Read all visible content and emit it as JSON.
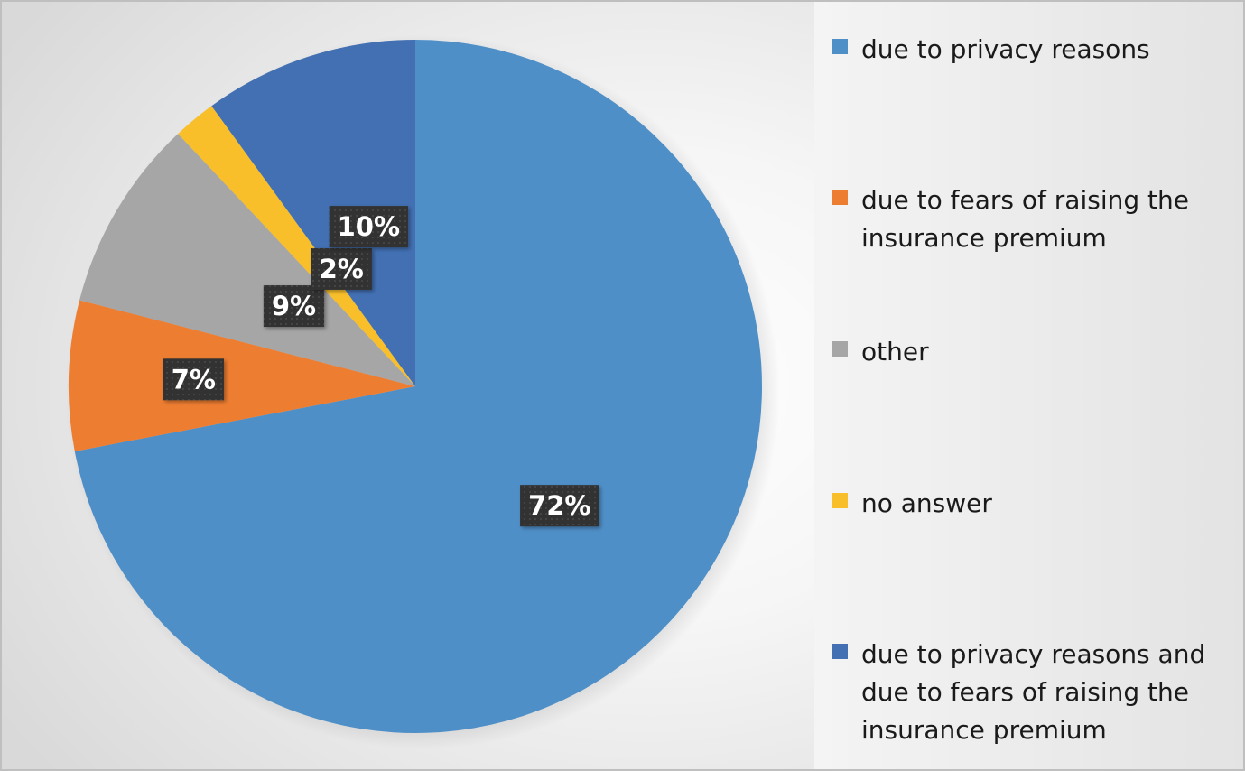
{
  "chart_data": {
    "type": "pie",
    "title": "",
    "start": "12 o'clock",
    "direction": "clockwise",
    "legend_position": "right",
    "slices": [
      {
        "label": "due to privacy reasons",
        "value": 72,
        "display": "72%",
        "color": "#4f8fc8"
      },
      {
        "label": "due to fears of raising the insurance premium",
        "value": 7,
        "display": "7%",
        "color": "#ed7d31"
      },
      {
        "label": "other",
        "value": 9,
        "display": "9%",
        "color": "#a6a6a6"
      },
      {
        "label": "no answer",
        "value": 2,
        "display": "2%",
        "color": "#f8bf2b"
      },
      {
        "label": "due to privacy reasons and due to fears of raising the insurance premium",
        "value": 10,
        "display": "10%",
        "color": "#4270b3"
      }
    ]
  }
}
